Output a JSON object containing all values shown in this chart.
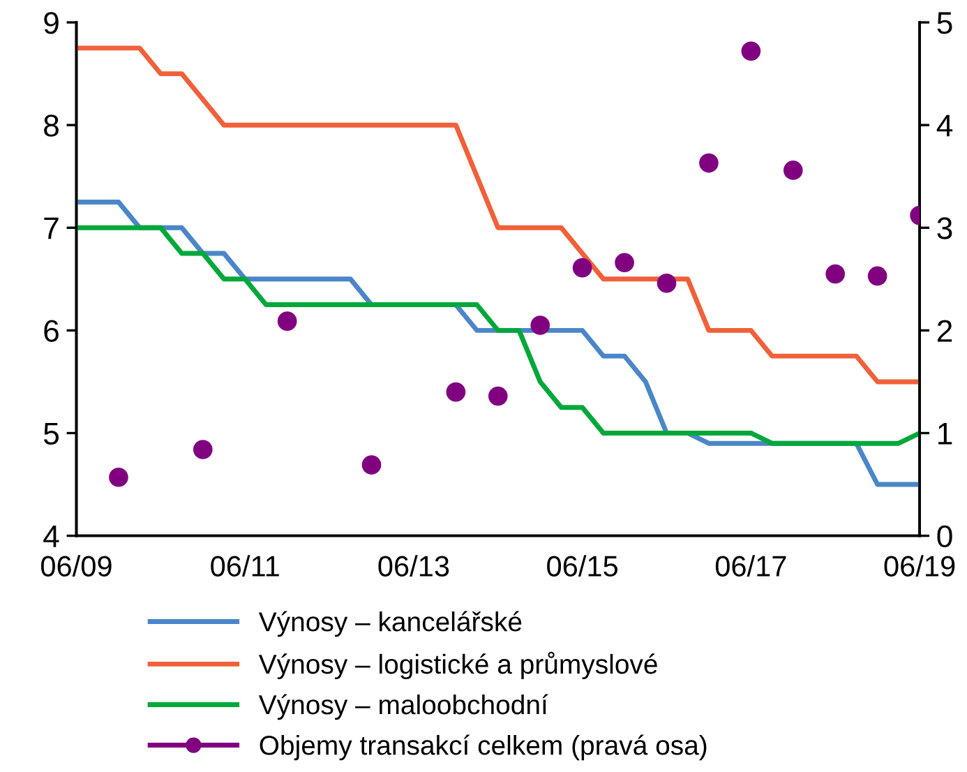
{
  "chart_data": {
    "type": "line",
    "categories": [
      "06/09",
      null,
      null,
      null,
      null,
      null,
      null,
      null,
      "06/11",
      null,
      null,
      null,
      null,
      null,
      null,
      null,
      "06/13",
      null,
      null,
      null,
      null,
      null,
      null,
      null,
      "06/15",
      null,
      null,
      null,
      null,
      null,
      null,
      null,
      "06/17",
      null,
      null,
      null,
      null,
      null,
      null,
      null,
      "06/19"
    ],
    "series": [
      {
        "name": "Výnosy – kancelářské",
        "color": "#4a86c8",
        "values": [
          7.25,
          7.25,
          7.25,
          7.0,
          7.0,
          7.0,
          6.75,
          6.75,
          6.5,
          6.5,
          6.5,
          6.5,
          6.5,
          6.5,
          6.25,
          6.25,
          6.25,
          6.25,
          6.25,
          6.0,
          6.0,
          6.0,
          6.0,
          6.0,
          6.0,
          5.75,
          5.75,
          5.5,
          5.0,
          5.0,
          4.9,
          4.9,
          4.9,
          4.9,
          4.9,
          4.9,
          4.9,
          4.9,
          4.5,
          4.5,
          4.5
        ]
      },
      {
        "name": "Výnosy – logistické a průmyslové",
        "color": "#f0603a",
        "values": [
          8.75,
          8.75,
          8.75,
          8.75,
          8.5,
          8.5,
          8.25,
          8.0,
          8.0,
          8.0,
          8.0,
          8.0,
          8.0,
          8.0,
          8.0,
          8.0,
          8.0,
          8.0,
          8.0,
          7.5,
          7.0,
          7.0,
          7.0,
          7.0,
          6.75,
          6.5,
          6.5,
          6.5,
          6.5,
          6.5,
          6.0,
          6.0,
          6.0,
          5.75,
          5.75,
          5.75,
          5.75,
          5.75,
          5.5,
          5.5,
          5.5
        ]
      },
      {
        "name": "Výnosy – maloobchodní",
        "color": "#00a83a",
        "values": [
          7.0,
          7.0,
          7.0,
          7.0,
          7.0,
          6.75,
          6.75,
          6.5,
          6.5,
          6.25,
          6.25,
          6.25,
          6.25,
          6.25,
          6.25,
          6.25,
          6.25,
          6.25,
          6.25,
          6.25,
          6.0,
          6.0,
          5.5,
          5.25,
          5.25,
          5.0,
          5.0,
          5.0,
          5.0,
          5.0,
          5.0,
          5.0,
          5.0,
          4.9,
          4.9,
          4.9,
          4.9,
          4.9,
          4.9,
          4.9,
          5.0
        ]
      },
      {
        "name": "Objemy transakcí celkem (pravá osa)",
        "color": "#800080",
        "type": "scatter",
        "axis": "y2",
        "marker": "circle",
        "values": [
          null,
          null,
          0.57,
          null,
          null,
          null,
          0.84,
          null,
          null,
          null,
          2.09,
          null,
          null,
          null,
          0.69,
          null,
          null,
          null,
          1.4,
          null,
          1.36,
          null,
          2.05,
          null,
          2.61,
          null,
          2.66,
          null,
          2.46,
          null,
          3.63,
          null,
          4.72,
          null,
          3.56,
          null,
          2.55,
          null,
          2.53,
          null,
          3.12
        ]
      }
    ],
    "ylim": [
      4,
      9
    ],
    "yticks": [
      4,
      5,
      6,
      7,
      8,
      9
    ],
    "y2lim": [
      0,
      5
    ],
    "y2ticks": [
      0,
      1,
      2,
      3,
      4,
      5
    ],
    "legend": "bottom",
    "grid": false
  }
}
